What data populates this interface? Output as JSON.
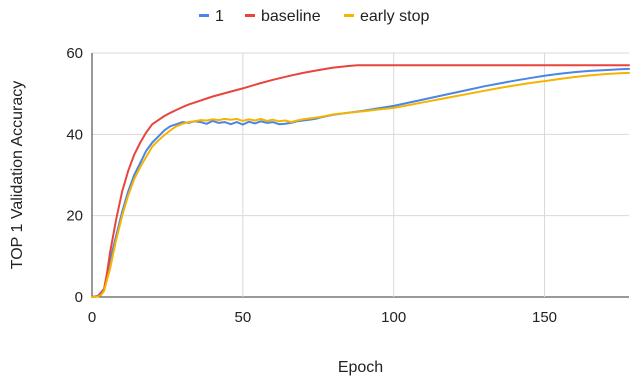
{
  "chart_data": {
    "type": "line",
    "title": "",
    "xlabel": "Epoch",
    "ylabel": "TOP 1 Validation Accuracy",
    "xlim": [
      0,
      178
    ],
    "ylim": [
      0,
      60
    ],
    "x_ticks": [
      0,
      50,
      100,
      150
    ],
    "y_ticks": [
      0,
      20,
      40,
      60
    ],
    "grid": true,
    "legend_position": "top",
    "series": [
      {
        "name": "1",
        "color": "#4a86e8",
        "points": [
          [
            0,
            0
          ],
          [
            2,
            0.3
          ],
          [
            4,
            2
          ],
          [
            6,
            9
          ],
          [
            8,
            15
          ],
          [
            10,
            21
          ],
          [
            12,
            26
          ],
          [
            14,
            30
          ],
          [
            16,
            33
          ],
          [
            18,
            36
          ],
          [
            20,
            38
          ],
          [
            22,
            39.5
          ],
          [
            24,
            41
          ],
          [
            26,
            42
          ],
          [
            28,
            42.5
          ],
          [
            30,
            43
          ],
          [
            32,
            42.8
          ],
          [
            34,
            43.2
          ],
          [
            36,
            43
          ],
          [
            38,
            42.6
          ],
          [
            40,
            43.3
          ],
          [
            42,
            42.8
          ],
          [
            44,
            43
          ],
          [
            46,
            42.5
          ],
          [
            48,
            43
          ],
          [
            50,
            42.4
          ],
          [
            52,
            43.1
          ],
          [
            54,
            42.7
          ],
          [
            56,
            43.2
          ],
          [
            58,
            42.8
          ],
          [
            60,
            43
          ],
          [
            62,
            42.5
          ],
          [
            64,
            42.6
          ],
          [
            66,
            42.8
          ],
          [
            68,
            43.2
          ],
          [
            70,
            43.4
          ],
          [
            72,
            43.6
          ],
          [
            74,
            43.8
          ],
          [
            76,
            44.2
          ],
          [
            78,
            44.5
          ],
          [
            80,
            44.8
          ],
          [
            85,
            45.3
          ],
          [
            90,
            45.8
          ],
          [
            95,
            46.4
          ],
          [
            100,
            47
          ],
          [
            105,
            47.8
          ],
          [
            110,
            48.6
          ],
          [
            115,
            49.4
          ],
          [
            120,
            50.2
          ],
          [
            125,
            51
          ],
          [
            130,
            51.8
          ],
          [
            135,
            52.5
          ],
          [
            140,
            53.2
          ],
          [
            145,
            53.8
          ],
          [
            150,
            54.4
          ],
          [
            155,
            54.9
          ],
          [
            160,
            55.3
          ],
          [
            165,
            55.6
          ],
          [
            170,
            55.8
          ],
          [
            175,
            56
          ],
          [
            178,
            56.1
          ]
        ]
      },
      {
        "name": "baseline",
        "color": "#e8453c",
        "points": [
          [
            0,
            0
          ],
          [
            2,
            0.2
          ],
          [
            3,
            0.8
          ],
          [
            4,
            2
          ],
          [
            5,
            6
          ],
          [
            6,
            11
          ],
          [
            8,
            19
          ],
          [
            10,
            26
          ],
          [
            12,
            31
          ],
          [
            14,
            35
          ],
          [
            16,
            38
          ],
          [
            18,
            40.5
          ],
          [
            20,
            42.5
          ],
          [
            22,
            43.5
          ],
          [
            24,
            44.5
          ],
          [
            26,
            45.3
          ],
          [
            28,
            46
          ],
          [
            30,
            46.7
          ],
          [
            32,
            47.3
          ],
          [
            34,
            47.8
          ],
          [
            36,
            48.3
          ],
          [
            38,
            48.8
          ],
          [
            40,
            49.3
          ],
          [
            45,
            50.3
          ],
          [
            50,
            51.3
          ],
          [
            55,
            52.4
          ],
          [
            60,
            53.4
          ],
          [
            65,
            54.3
          ],
          [
            70,
            55.1
          ],
          [
            75,
            55.8
          ],
          [
            80,
            56.4
          ],
          [
            85,
            56.8
          ],
          [
            88,
            57
          ],
          [
            95,
            57
          ],
          [
            100,
            57
          ],
          [
            120,
            57
          ],
          [
            140,
            57
          ],
          [
            160,
            57
          ],
          [
            178,
            57
          ]
        ]
      },
      {
        "name": "early stop",
        "color": "#f6b400",
        "points": [
          [
            0,
            0
          ],
          [
            2,
            0.1
          ],
          [
            3,
            0.5
          ],
          [
            4,
            1.5
          ],
          [
            6,
            7
          ],
          [
            8,
            14
          ],
          [
            10,
            20
          ],
          [
            12,
            25
          ],
          [
            14,
            29
          ],
          [
            16,
            32
          ],
          [
            18,
            34.5
          ],
          [
            20,
            37
          ],
          [
            22,
            38.5
          ],
          [
            24,
            39.8
          ],
          [
            26,
            41
          ],
          [
            28,
            42
          ],
          [
            30,
            42.6
          ],
          [
            32,
            43
          ],
          [
            34,
            43.2
          ],
          [
            36,
            43.5
          ],
          [
            38,
            43.4
          ],
          [
            40,
            43.7
          ],
          [
            42,
            43.5
          ],
          [
            44,
            43.8
          ],
          [
            46,
            43.6
          ],
          [
            48,
            43.8
          ],
          [
            50,
            43.3
          ],
          [
            52,
            43.7
          ],
          [
            54,
            43.4
          ],
          [
            56,
            43.8
          ],
          [
            58,
            43.3
          ],
          [
            60,
            43.6
          ],
          [
            62,
            43.2
          ],
          [
            64,
            43.4
          ],
          [
            66,
            43
          ],
          [
            68,
            43.4
          ],
          [
            70,
            43.7
          ],
          [
            72,
            43.9
          ],
          [
            74,
            44.1
          ],
          [
            76,
            44.3
          ],
          [
            78,
            44.6
          ],
          [
            80,
            44.9
          ],
          [
            85,
            45.3
          ],
          [
            90,
            45.7
          ],
          [
            95,
            46.1
          ],
          [
            100,
            46.5
          ],
          [
            105,
            47.2
          ],
          [
            110,
            47.9
          ],
          [
            115,
            48.6
          ],
          [
            120,
            49.3
          ],
          [
            125,
            50
          ],
          [
            130,
            50.7
          ],
          [
            135,
            51.4
          ],
          [
            140,
            52
          ],
          [
            145,
            52.6
          ],
          [
            150,
            53.1
          ],
          [
            155,
            53.6
          ],
          [
            160,
            54.1
          ],
          [
            165,
            54.5
          ],
          [
            170,
            54.8
          ],
          [
            175,
            55
          ],
          [
            178,
            55.1
          ]
        ]
      }
    ]
  }
}
